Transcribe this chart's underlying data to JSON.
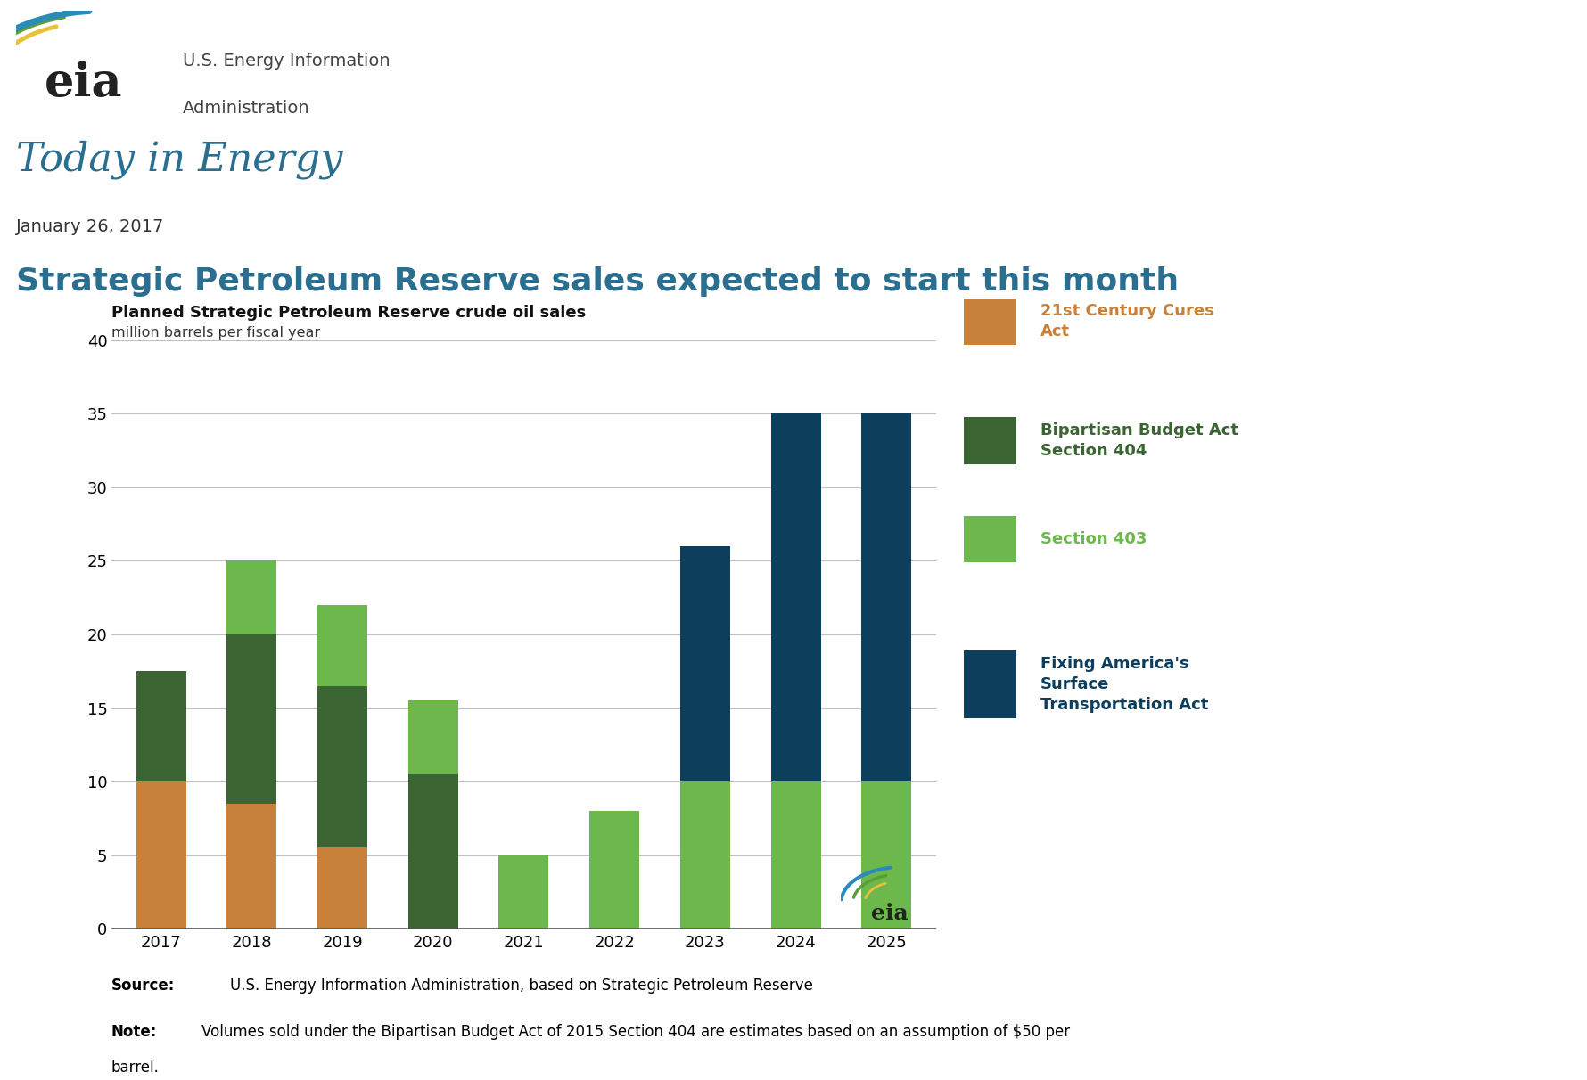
{
  "page_title": "Today in Energy",
  "page_date": "January 26, 2017",
  "article_title": "Strategic Petroleum Reserve sales expected to start this month",
  "chart_title": "Planned Strategic Petroleum Reserve crude oil sales",
  "chart_subtitle": "million barrels per fiscal year",
  "years": [
    "2017",
    "2018",
    "2019",
    "2020",
    "2021",
    "2022",
    "2023",
    "2024",
    "2025"
  ],
  "cures_act": [
    10.0,
    8.5,
    5.5,
    0.0,
    0.0,
    0.0,
    0.0,
    0.0,
    0.0
  ],
  "section404": [
    7.5,
    11.5,
    11.0,
    10.5,
    0.0,
    0.0,
    0.0,
    0.0,
    0.0
  ],
  "section403": [
    0.0,
    5.0,
    5.5,
    5.0,
    5.0,
    8.0,
    10.0,
    10.0,
    10.0
  ],
  "fast_act": [
    0.0,
    0.0,
    0.0,
    0.0,
    0.0,
    0.0,
    16.0,
    25.0,
    25.0
  ],
  "color_cures": "#c8813a",
  "color_s404": "#3a6432",
  "color_s403": "#6db84d",
  "color_fast": "#0d3f5c",
  "ylim": [
    0,
    40
  ],
  "yticks": [
    0,
    5,
    10,
    15,
    20,
    25,
    30,
    35,
    40
  ],
  "page_title_color": "#2a6f8f",
  "article_title_color": "#2a6f8f",
  "source_text": "U.S. Energy Information Administration, based on Strategic Petroleum Reserve",
  "note_text": "Volumes sold under the Bipartisan Budget Act of 2015 Section 404 are estimates based on an assumption of $50 per barrel.",
  "bg_color": "#ffffff"
}
